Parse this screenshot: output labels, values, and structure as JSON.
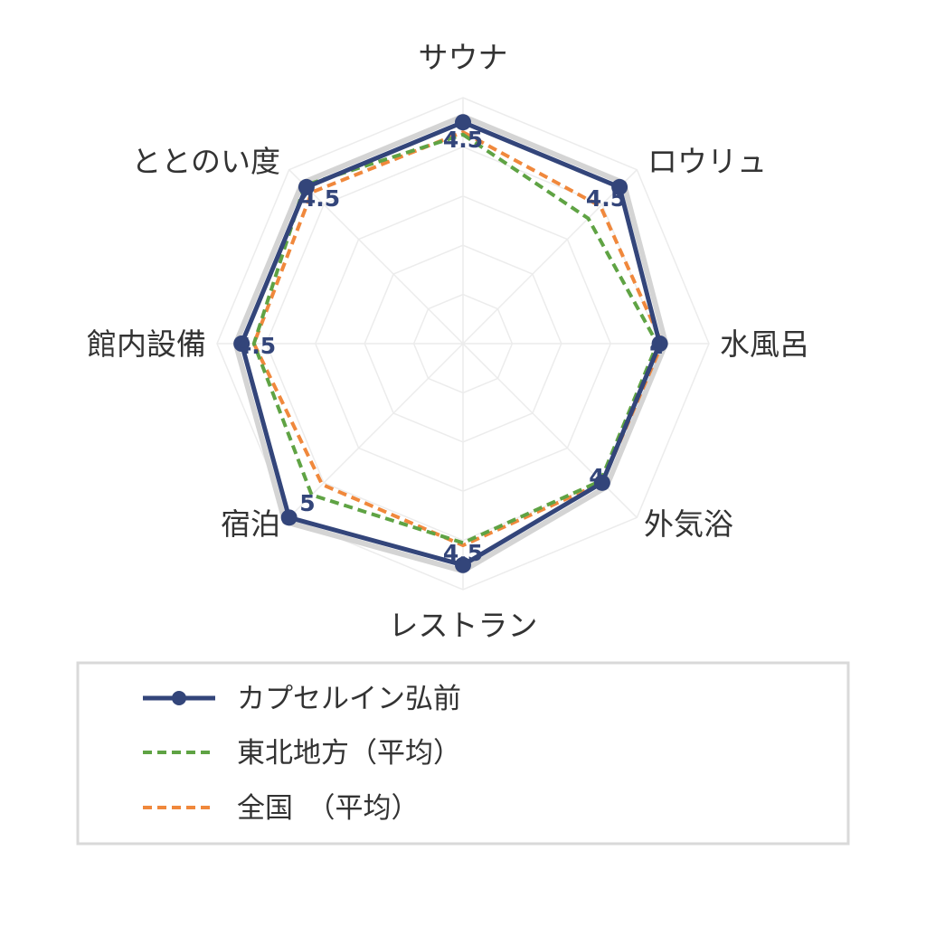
{
  "chart_data": {
    "type": "radar",
    "axes": [
      "サウナ",
      "ロウリュ",
      "水風呂",
      "外気浴",
      "レストラン",
      "宿泊",
      "館内設備",
      "ととのい度"
    ],
    "value_labels": [
      "4.5",
      "4.5",
      "4",
      "4",
      "4.5",
      "5",
      "4.5",
      "4.5"
    ],
    "range": [
      0,
      5
    ],
    "grid": true,
    "series": [
      {
        "name": "カプセルイン弘前",
        "values": [
          4.5,
          4.5,
          4.0,
          4.0,
          4.5,
          5.0,
          4.5,
          4.5
        ],
        "color": "#33457a",
        "style": "solid-markers"
      },
      {
        "name": "東北地方（平均）",
        "values": [
          4.25,
          3.6,
          3.95,
          3.95,
          4.05,
          4.35,
          4.25,
          4.55
        ],
        "color": "#5fa344",
        "style": "dashed"
      },
      {
        "name": "全国　（平均）",
        "values": [
          4.3,
          3.95,
          4.05,
          4.0,
          4.1,
          4.05,
          4.25,
          4.35
        ],
        "color": "#f0883c",
        "style": "dashed"
      }
    ],
    "reference_polygon_color": "#d4d4d4",
    "legend_placement": "bottom"
  }
}
